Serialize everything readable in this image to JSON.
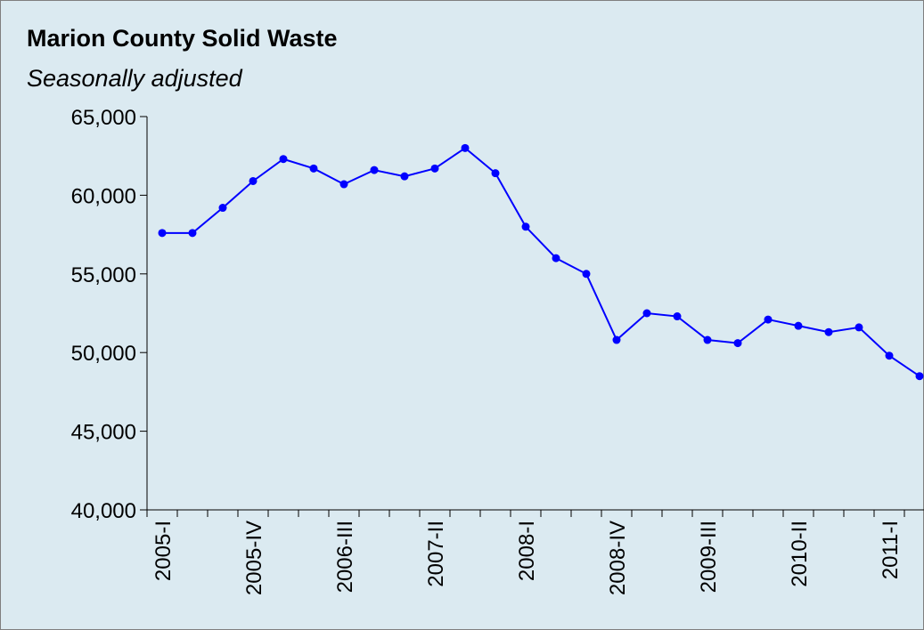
{
  "chart_data": {
    "type": "line",
    "title": "Marion County Solid Waste",
    "subtitle": "Seasonally adjusted",
    "categories": [
      "2005-I",
      null,
      null,
      "2005-IV",
      null,
      null,
      "2006-III",
      null,
      null,
      "2007-II",
      null,
      null,
      "2008-I",
      null,
      null,
      "2008-IV",
      null,
      null,
      "2009-III",
      null,
      null,
      "2010-II",
      null,
      null,
      "2011-I",
      null
    ],
    "series": [
      {
        "name": "Solid waste",
        "color": "#0000ff",
        "values": [
          57600,
          57600,
          59200,
          60900,
          62300,
          61700,
          60700,
          61600,
          61200,
          61700,
          63000,
          61400,
          58000,
          56000,
          55000,
          50800,
          52500,
          52300,
          50800,
          50600,
          52100,
          51700,
          51300,
          51600,
          49800,
          48500
        ]
      }
    ],
    "ylim": [
      40000,
      65000
    ],
    "yticks": [
      {
        "value": 40000,
        "label": "40,000"
      },
      {
        "value": 45000,
        "label": "45,000"
      },
      {
        "value": 50000,
        "label": "50,000"
      },
      {
        "value": 55000,
        "label": "55,000"
      },
      {
        "value": 60000,
        "label": "60,000"
      },
      {
        "value": 65000,
        "label": "65,000"
      }
    ]
  }
}
